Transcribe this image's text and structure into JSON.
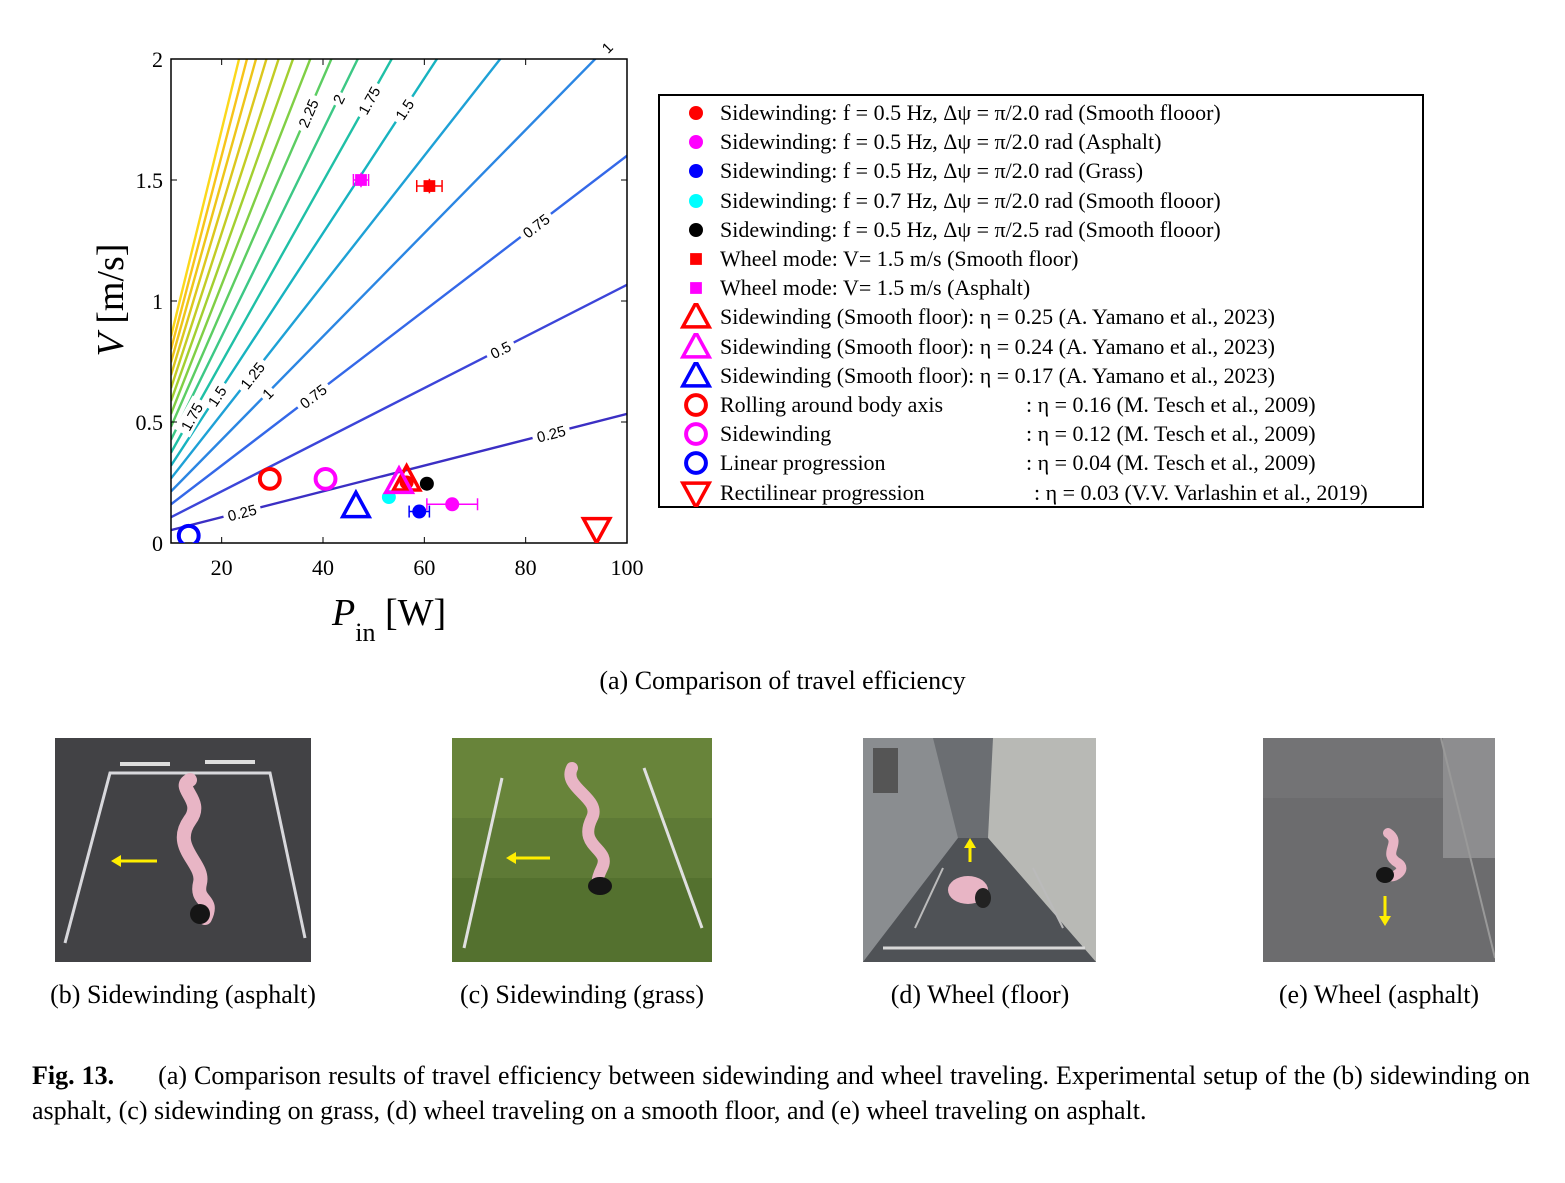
{
  "chart_data": {
    "type": "scatter",
    "xlabel": "P_in [W]",
    "ylabel": "V [m/s]",
    "xlim": [
      10,
      100
    ],
    "ylim": [
      0,
      2
    ],
    "xticks": [
      "20",
      "40",
      "60",
      "80",
      "100"
    ],
    "yticks": [
      "0",
      "0.5",
      "1",
      "1.5",
      "2"
    ],
    "contours": {
      "quantity": "eta",
      "levels": [
        "0.25",
        "0.5",
        "0.75",
        "1",
        "1.25",
        "1.5",
        "1.75",
        "2",
        "2.25",
        "2.5",
        "3"
      ],
      "values": [
        0.25,
        0.5,
        0.75,
        1,
        1.25,
        1.5,
        1.75,
        2,
        2.25,
        2.5,
        2.75,
        3,
        3.25,
        3.5,
        3.75,
        4
      ],
      "colors": [
        "#3b2fc4",
        "#3c45d9",
        "#3468e8",
        "#2b86e3",
        "#1ea1d6",
        "#17b3c0",
        "#1fc0a6",
        "#3cc885",
        "#5ccd62",
        "#80cf45",
        "#a3cf30",
        "#c3cc24",
        "#dcc71d",
        "#eec519",
        "#f7c41a",
        "#fbd81b"
      ]
    },
    "series": [
      {
        "name": "Sidewinding: f = 0.5 Hz, Δψ = π/2.0 rad (Smooth flooor)",
        "marker": "circle-filled",
        "color": "#ff0000",
        "x": [
          56.5
        ],
        "y": [
          0.25
        ]
      },
      {
        "name": "Sidewinding: f = 0.5 Hz, Δψ = π/2.0 rad (Asphalt)",
        "marker": "circle-filled",
        "color": "#ff00ff",
        "x": [
          65.5
        ],
        "y": [
          0.16
        ],
        "xerr": [
          5
        ]
      },
      {
        "name": "Sidewinding: f = 0.5 Hz, Δψ = π/2.0 rad (Grass)",
        "marker": "circle-filled",
        "color": "#0000ff",
        "x": [
          59
        ],
        "y": [
          0.13
        ],
        "xerr": [
          2
        ]
      },
      {
        "name": "Sidewinding: f = 0.7 Hz, Δψ = π/2.0 rad (Smooth flooor)",
        "marker": "circle-filled",
        "color": "#00ffff",
        "x": [
          53
        ],
        "y": [
          0.19
        ]
      },
      {
        "name": "Sidewinding: f = 0.5 Hz, Δψ = π/2.5 rad (Smooth flooor)",
        "marker": "circle-filled",
        "color": "#000000",
        "x": [
          60.5
        ],
        "y": [
          0.245
        ]
      },
      {
        "name": "Wheel mode: V= 1.5 m/s (Smooth floor)",
        "marker": "square-filled",
        "color": "#ff0000",
        "x": [
          61
        ],
        "y": [
          1.475
        ],
        "xerr": [
          2.5
        ],
        "yerr": [
          0.03
        ]
      },
      {
        "name": "Wheel mode: V= 1.5 m/s (Asphalt)",
        "marker": "square-filled",
        "color": "#ff00ff",
        "x": [
          47.5
        ],
        "y": [
          1.5
        ],
        "xerr": [
          1.5
        ],
        "yerr": [
          0.03
        ]
      },
      {
        "name": "Sidewinding (Smooth floor): η = 0.25 (A. Yamano et al., 2023)",
        "marker": "triangle-up",
        "color": "#ff0000",
        "x": [
          56.5
        ],
        "y": [
          0.26
        ]
      },
      {
        "name": "Sidewinding (Smooth floor): η = 0.24 (A. Yamano et al., 2023)",
        "marker": "triangle-up",
        "color": "#ff00ff",
        "x": [
          55
        ],
        "y": [
          0.25
        ]
      },
      {
        "name": "Sidewinding (Smooth floor): η = 0.17 (A. Yamano et al., 2023)",
        "marker": "triangle-up",
        "color": "#0000ff",
        "x": [
          46.5
        ],
        "y": [
          0.15
        ]
      },
      {
        "name": "Rolling around body axis : η = 0.16 (M. Tesch et al., 2009)",
        "marker": "circle-open",
        "color": "#ff0000",
        "x": [
          29.5
        ],
        "y": [
          0.265
        ]
      },
      {
        "name": "Sidewinding : η = 0.12 (M. Tesch et al., 2009)",
        "marker": "circle-open",
        "color": "#ff00ff",
        "x": [
          40.5
        ],
        "y": [
          0.265
        ]
      },
      {
        "name": "Linear progression : η = 0.04 (M. Tesch et al., 2009)",
        "marker": "circle-open",
        "color": "#0000ff",
        "x": [
          13.5
        ],
        "y": [
          0.03
        ]
      },
      {
        "name": "Rectilinear progression : η = 0.03 (V.V. Varlashin et al., 2019)",
        "marker": "triangle-down",
        "color": "#ff0000",
        "x": [
          94
        ],
        "y": [
          0.06
        ]
      }
    ]
  },
  "legend": {
    "entries": [
      {
        "text": "Sidewinding: f = 0.5 Hz, Δψ = π/2.0 rad (Smooth flooor)",
        "eta": "",
        "marker": "circle-filled",
        "color": "#ff0000"
      },
      {
        "text": "Sidewinding: f = 0.5 Hz, Δψ = π/2.0 rad (Asphalt)",
        "eta": "",
        "marker": "circle-filled",
        "color": "#ff00ff"
      },
      {
        "text": "Sidewinding: f = 0.5 Hz, Δψ = π/2.0 rad (Grass)",
        "eta": "",
        "marker": "circle-filled",
        "color": "#0000ff"
      },
      {
        "text": "Sidewinding: f = 0.7 Hz, Δψ = π/2.0 rad (Smooth flooor)",
        "eta": "",
        "marker": "circle-filled",
        "color": "#00ffff"
      },
      {
        "text": "Sidewinding: f = 0.5 Hz, Δψ = π/2.5 rad (Smooth flooor)",
        "eta": "",
        "marker": "circle-filled",
        "color": "#000000"
      },
      {
        "text": "Wheel mode: V= 1.5 m/s (Smooth floor)",
        "eta": "",
        "marker": "square-filled",
        "color": "#ff0000"
      },
      {
        "text": "Wheel mode: V= 1.5 m/s (Asphalt)",
        "eta": "",
        "marker": "square-filled",
        "color": "#ff00ff"
      },
      {
        "text": "Sidewinding (Smooth floor): η = 0.25 (A. Yamano  et al., 2023)",
        "eta": "",
        "marker": "triangle-up",
        "color": "#ff0000"
      },
      {
        "text": "Sidewinding (Smooth floor): η = 0.24 (A. Yamano  et al., 2023)",
        "eta": "",
        "marker": "triangle-up",
        "color": "#ff00ff"
      },
      {
        "text": "Sidewinding (Smooth floor): η = 0.17 (A. Yamano  et al., 2023)",
        "eta": "",
        "marker": "triangle-up",
        "color": "#0000ff"
      },
      {
        "text": "Rolling around body axis",
        "eta": ": η = 0.16 (M. Tesch  et al., 2009)",
        "marker": "circle-open",
        "color": "#ff0000"
      },
      {
        "text": "Sidewinding",
        "eta": ": η = 0.12 (M. Tesch  et al., 2009)",
        "marker": "circle-open",
        "color": "#ff00ff"
      },
      {
        "text": "Linear progression",
        "eta": ": η = 0.04 (M. Tesch  et al., 2009)",
        "marker": "circle-open",
        "color": "#0000ff"
      },
      {
        "text": "Rectilinear progression",
        "eta": ": η = 0.03 (V.V. Varlashin  et al., 2019)",
        "marker": "triangle-down",
        "color": "#ff0000"
      }
    ]
  },
  "captions": {
    "a": "(a) Comparison of travel efficiency",
    "b": "(b) Sidewinding (asphalt)",
    "c": "(c) Sidewinding (grass)",
    "d": "(d) Wheel (floor)",
    "e": "(e) Wheel (asphalt)"
  },
  "figure_caption": {
    "label": "Fig. 13.",
    "text": "(a) Comparison results of travel efficiency between sidewinding and wheel traveling.  Experimental setup of the (b) sidewinding on asphalt, (c) sidewinding on grass, (d) wheel traveling on a smooth floor, and (e) wheel traveling on asphalt."
  }
}
